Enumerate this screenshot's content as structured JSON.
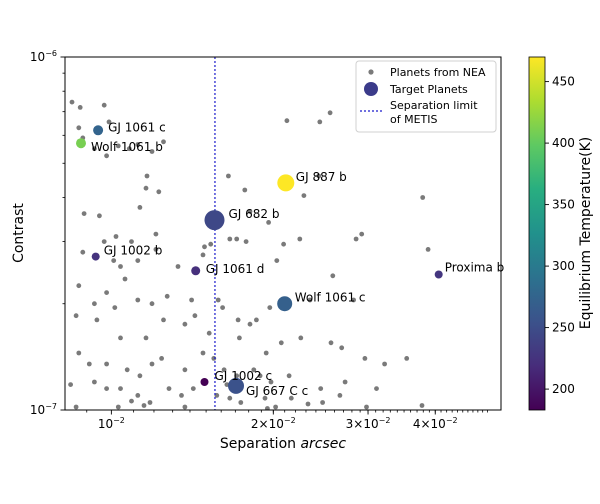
{
  "chart_data": {
    "type": "scatter",
    "xlabel": "Separation [arcsec]",
    "xlabel_main": "Separation ",
    "xlabel_unit": "arcsec",
    "ylabel": "Contrast",
    "x_scale": "log",
    "y_scale": "log",
    "xlim": [
      0.0082,
      0.053
    ],
    "ylim": [
      1e-07,
      1e-06
    ],
    "grid": false,
    "legend_placement": "top-right",
    "x_ticks": [
      {
        "value": 0.01,
        "base": "10",
        "exp": "−2"
      },
      {
        "value": 0.02,
        "base": "2×10",
        "exp": "−2"
      },
      {
        "value": 0.03,
        "base": "3×10",
        "exp": "−2"
      },
      {
        "value": 0.04,
        "base": "4×10",
        "exp": "−2"
      }
    ],
    "y_ticks": [
      {
        "value": 1e-07,
        "base": "10",
        "exp": "−7"
      },
      {
        "value": 1e-06,
        "base": "10",
        "exp": "−6"
      }
    ],
    "separation_limit": {
      "x": 0.01558,
      "label": "Separation limit of METIS",
      "color": "#1a1acc"
    },
    "legend": {
      "nea": "Planets from NEA",
      "target": "Target Planets",
      "limit_line1": "Separation limit",
      "limit_line2": "of METIS"
    },
    "colorbar": {
      "label": "Equilibrium Temperature(K)",
      "min": 183,
      "max": 470,
      "ticks": [
        200,
        250,
        300,
        350,
        400,
        450
      ]
    },
    "nea_color": "#7a7a7a",
    "nea_points": [
      [
        0.00845,
        7.45e-07
      ],
      [
        0.00875,
        7.2e-07
      ],
      [
        0.0087,
        6.3e-07
      ],
      [
        0.00885,
        5.9e-07
      ],
      [
        0.0093,
        5.5e-07
      ],
      [
        0.0098,
        5.25e-07
      ],
      [
        0.0103,
        5.6e-07
      ],
      [
        0.0108,
        5.5e-07
      ],
      [
        0.0112,
        5.65e-07
      ],
      [
        0.0119,
        5.4e-07
      ],
      [
        0.0125,
        5.75e-07
      ],
      [
        0.0097,
        7.3e-07
      ],
      [
        0.0099,
        6.55e-07
      ],
      [
        0.01165,
        4.6e-07
      ],
      [
        0.0116,
        4.25e-07
      ],
      [
        0.0113,
        3.75e-07
      ],
      [
        0.01225,
        4.15e-07
      ],
      [
        0.0121,
        3.15e-07
      ],
      [
        0.0089,
        3.6e-07
      ],
      [
        0.0095,
        3.55e-07
      ],
      [
        0.0097,
        3e-07
      ],
      [
        0.0102,
        3.1e-07
      ],
      [
        0.0109,
        3e-07
      ],
      [
        0.0121,
        2.85e-07
      ],
      [
        0.00885,
        2.8e-07
      ],
      [
        0.0104,
        2.55e-07
      ],
      [
        0.0101,
        2.65e-07
      ],
      [
        0.0112,
        2.65e-07
      ],
      [
        0.0133,
        2.55e-07
      ],
      [
        0.0148,
        2.75e-07
      ],
      [
        0.0149,
        2.9e-07
      ],
      [
        0.0153,
        2.95e-07
      ],
      [
        0.0166,
        3.05e-07
      ],
      [
        0.0171,
        3.05e-07
      ],
      [
        0.0178,
        3e-07
      ],
      [
        0.0165,
        4.6e-07
      ],
      [
        0.0177,
        4.2e-07
      ],
      [
        0.0181,
        3.65e-07
      ],
      [
        0.0196,
        3.4e-07
      ],
      [
        0.0203,
        2.65e-07
      ],
      [
        0.0209,
        2.95e-07
      ],
      [
        0.0224,
        3.05e-07
      ],
      [
        0.0228,
        4.05e-07
      ],
      [
        0.0243,
        4.6e-07
      ],
      [
        0.0244,
        6.55e-07
      ],
      [
        0.0212,
        6.6e-07
      ],
      [
        0.0255,
        6.95e-07
      ],
      [
        0.0285,
        3.05e-07
      ],
      [
        0.0292,
        3.15e-07
      ],
      [
        0.0379,
        4e-07
      ],
      [
        0.0388,
        2.85e-07
      ],
      [
        0.0106,
        2.35e-07
      ],
      [
        0.0098,
        2.15e-07
      ],
      [
        0.0087,
        2.25e-07
      ],
      [
        0.0093,
        2e-07
      ],
      [
        0.01015,
        1.95e-07
      ],
      [
        0.0112,
        2.05e-07
      ],
      [
        0.0119,
        2e-07
      ],
      [
        0.0127,
        2.1e-07
      ],
      [
        0.0141,
        2.05e-07
      ],
      [
        0.0143,
        1.85e-07
      ],
      [
        0.0158,
        2.05e-07
      ],
      [
        0.0161,
        1.95e-07
      ],
      [
        0.0172,
        1.8e-07
      ],
      [
        0.0181,
        1.75e-07
      ],
      [
        0.0186,
        1.8e-07
      ],
      [
        0.0197,
        1.95e-07
      ],
      [
        0.0234,
        2.05e-07
      ],
      [
        0.0258,
        2.4e-07
      ],
      [
        0.0282,
        2.05e-07
      ],
      [
        0.0086,
        1.85e-07
      ],
      [
        0.0094,
        1.8e-07
      ],
      [
        0.0104,
        1.6e-07
      ],
      [
        0.0116,
        1.6e-07
      ],
      [
        0.0125,
        1.8e-07
      ],
      [
        0.0137,
        1.75e-07
      ],
      [
        0.0152,
        1.65e-07
      ],
      [
        0.0173,
        1.6e-07
      ],
      [
        0.0194,
        1.45e-07
      ],
      [
        0.0207,
        1.55e-07
      ],
      [
        0.0225,
        1.6e-07
      ],
      [
        0.0256,
        1.55e-07
      ],
      [
        0.0268,
        1.5e-07
      ],
      [
        0.0296,
        1.4e-07
      ],
      [
        0.0322,
        1.35e-07
      ],
      [
        0.0354,
        1.4e-07
      ],
      [
        0.0087,
        1.45e-07
      ],
      [
        0.0091,
        1.35e-07
      ],
      [
        0.0098,
        1.35e-07
      ],
      [
        0.0107,
        1.3e-07
      ],
      [
        0.0113,
        1.25e-07
      ],
      [
        0.0119,
        1.35e-07
      ],
      [
        0.0124,
        1.4e-07
      ],
      [
        0.0137,
        1.3e-07
      ],
      [
        0.0148,
        1.45e-07
      ],
      [
        0.0155,
        1.4e-07
      ],
      [
        0.0162,
        1.3e-07
      ],
      [
        0.0171,
        1.25e-07
      ],
      [
        0.0184,
        1.3e-07
      ],
      [
        0.0198,
        1.2e-07
      ],
      [
        0.0214,
        1.25e-07
      ],
      [
        0.0245,
        1.15e-07
      ],
      [
        0.0272,
        1.2e-07
      ],
      [
        0.0311,
        1.15e-07
      ],
      [
        0.0093,
        1.2e-07
      ],
      [
        0.0098,
        1.15e-07
      ],
      [
        0.0104,
        1.15e-07
      ],
      [
        0.0112,
        1.1e-07
      ],
      [
        0.0118,
        1.05e-07
      ],
      [
        0.0128,
        1.15e-07
      ],
      [
        0.0135,
        1.1e-07
      ],
      [
        0.0142,
        1.15e-07
      ],
      [
        0.0149,
        1.2e-07
      ],
      [
        0.0157,
        1.1e-07
      ],
      [
        0.0164,
        1.18e-07
      ],
      [
        0.0174,
        1.05e-07
      ],
      [
        0.0193,
        1.08e-07
      ],
      [
        0.0202,
        1.02e-07
      ],
      [
        0.0216,
        1.08e-07
      ],
      [
        0.0247,
        1.05e-07
      ],
      [
        0.0266,
        1.1e-07
      ],
      [
        0.0298,
        1.02e-07
      ],
      [
        0.0378,
        1.03e-07
      ],
      [
        0.0086,
        1.02e-07
      ],
      [
        0.0103,
        1.02e-07
      ],
      [
        0.0109,
        1.06e-07
      ],
      [
        0.0115,
        1.03e-07
      ],
      [
        0.0137,
        1.02e-07
      ],
      [
        0.0195,
        1.01e-07
      ],
      [
        0.0232,
        1.04e-07
      ],
      [
        0.0084,
        1.18e-07
      ],
      [
        0.0166,
        1.08e-07
      ],
      [
        0.0189,
        1.25e-07
      ]
    ],
    "targets": [
      {
        "name": "GJ 1061 c",
        "x": 0.00945,
        "y": 6.2e-07,
        "temp": 275,
        "size": 5,
        "label_dx": 10,
        "label_dy": -3
      },
      {
        "name": "Wolf 1061 b",
        "x": 0.00878,
        "y": 5.7e-07,
        "temp": 410,
        "size": 5,
        "label_dx": 10,
        "label_dy": 4
      },
      {
        "name": "GJ 887 b",
        "x": 0.0211,
        "y": 4.4e-07,
        "temp": 470,
        "size": 8.5,
        "label_dx": 10,
        "label_dy": -6
      },
      {
        "name": "GJ 682 b",
        "x": 0.01555,
        "y": 3.45e-07,
        "temp": 245,
        "size": 10,
        "label_dx": 14,
        "label_dy": -6
      },
      {
        "name": "GJ 1002 b",
        "x": 0.00935,
        "y": 2.72e-07,
        "temp": 225,
        "size": 4,
        "label_dx": 8,
        "label_dy": -6
      },
      {
        "name": "GJ 1061 d",
        "x": 0.01435,
        "y": 2.48e-07,
        "temp": 222,
        "size": 4.5,
        "label_dx": 10,
        "label_dy": -2
      },
      {
        "name": "Proxima b",
        "x": 0.0406,
        "y": 2.42e-07,
        "temp": 228,
        "size": 4,
        "label_dx": 6,
        "label_dy": -7
      },
      {
        "name": "Wolf 1061 c",
        "x": 0.021,
        "y": 2e-07,
        "temp": 270,
        "size": 7.5,
        "label_dx": 10,
        "label_dy": -6
      },
      {
        "name": "GJ 1002 c",
        "x": 0.0149,
        "y": 1.2e-07,
        "temp": 183,
        "size": 4,
        "label_dx": 10,
        "label_dy": -6
      },
      {
        "name": "GJ 667 C c",
        "x": 0.01705,
        "y": 1.17e-07,
        "temp": 255,
        "size": 8,
        "label_dx": 10,
        "label_dy": 5
      }
    ]
  }
}
